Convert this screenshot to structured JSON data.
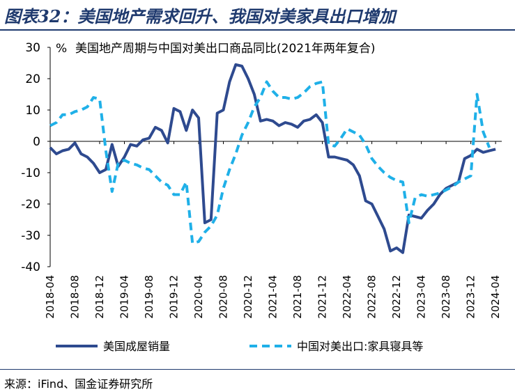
{
  "figure_title": "图表32：美国地产需求回升、我国对美家具出口增加",
  "source_note": "来源：iFind、国金证券研究所",
  "colors": {
    "series1": "#2e4a8f",
    "series2": "#1fb0e8",
    "title": "#1f3a6e"
  },
  "chart_data": {
    "type": "line",
    "title": "美国地产周期与中国对美出口商品同比(2021年两年复合)",
    "ylabel": "%",
    "ylim": [
      -40,
      30
    ],
    "yticks": [
      30,
      20,
      10,
      0,
      -10,
      -20,
      -30,
      -40
    ],
    "x_start": "2018-04",
    "x_end": "2024-05",
    "xtick_labels": [
      "2018-04",
      "2018-08",
      "2018-12",
      "2019-04",
      "2019-08",
      "2019-12",
      "2020-04",
      "2020-08",
      "2020-12",
      "2021-04",
      "2021-08",
      "2021-12",
      "2022-04",
      "2022-08",
      "2022-12",
      "2023-04",
      "2023-08",
      "2023-12",
      "2024-04"
    ],
    "series": [
      {
        "name": "美国成屋销量",
        "style": "solid",
        "values": [
          -2,
          -4,
          -3,
          -2.5,
          -0.5,
          -4,
          -5,
          -7,
          -10,
          -9,
          -1,
          -8,
          -5,
          -1,
          -1.5,
          0.5,
          1,
          4.5,
          3.5,
          -0.5,
          10.5,
          9.5,
          3.5,
          10,
          7.5,
          -26,
          -25,
          9,
          10,
          19,
          24.5,
          24,
          20,
          15,
          6.5,
          7,
          6.5,
          5,
          6,
          5.5,
          4.5,
          6.5,
          7,
          8.5,
          6,
          -5,
          -5,
          -5.5,
          -6,
          -7.5,
          -11,
          -19,
          -20,
          -24,
          -28,
          -35,
          -34,
          -35.5,
          -23.5,
          -24,
          -24.5,
          -22,
          -20,
          -17,
          -15,
          -14,
          -13,
          -5.5,
          -4.5,
          -2.5,
          -3.5,
          -3,
          -2.5
        ]
      },
      {
        "name": "中国对美出口:家具寝具等",
        "style": "dashed",
        "values": [
          5,
          6,
          8.5,
          8.5,
          9.5,
          10,
          11,
          14,
          13.5,
          -3,
          -16,
          -7,
          -6,
          -7,
          -7.5,
          -8.5,
          -9,
          -11,
          -13,
          -14,
          -17,
          -17,
          -13,
          -32.5,
          -32,
          -29,
          -27,
          -23.5,
          -15,
          -9,
          -4,
          2,
          6,
          11,
          14,
          19,
          16,
          14,
          14,
          13.5,
          14,
          15.5,
          17.5,
          18.5,
          19,
          -1,
          -1.5,
          1,
          4,
          3,
          2,
          -1,
          -5.5,
          -8,
          -10,
          -11.5,
          -12.5,
          -13,
          -26,
          -18,
          -17,
          -17.5,
          -17,
          -16.5,
          -15.5,
          -14.5,
          -13,
          -12,
          -11,
          15,
          3,
          -2
        ]
      }
    ],
    "legend": "bottom"
  }
}
